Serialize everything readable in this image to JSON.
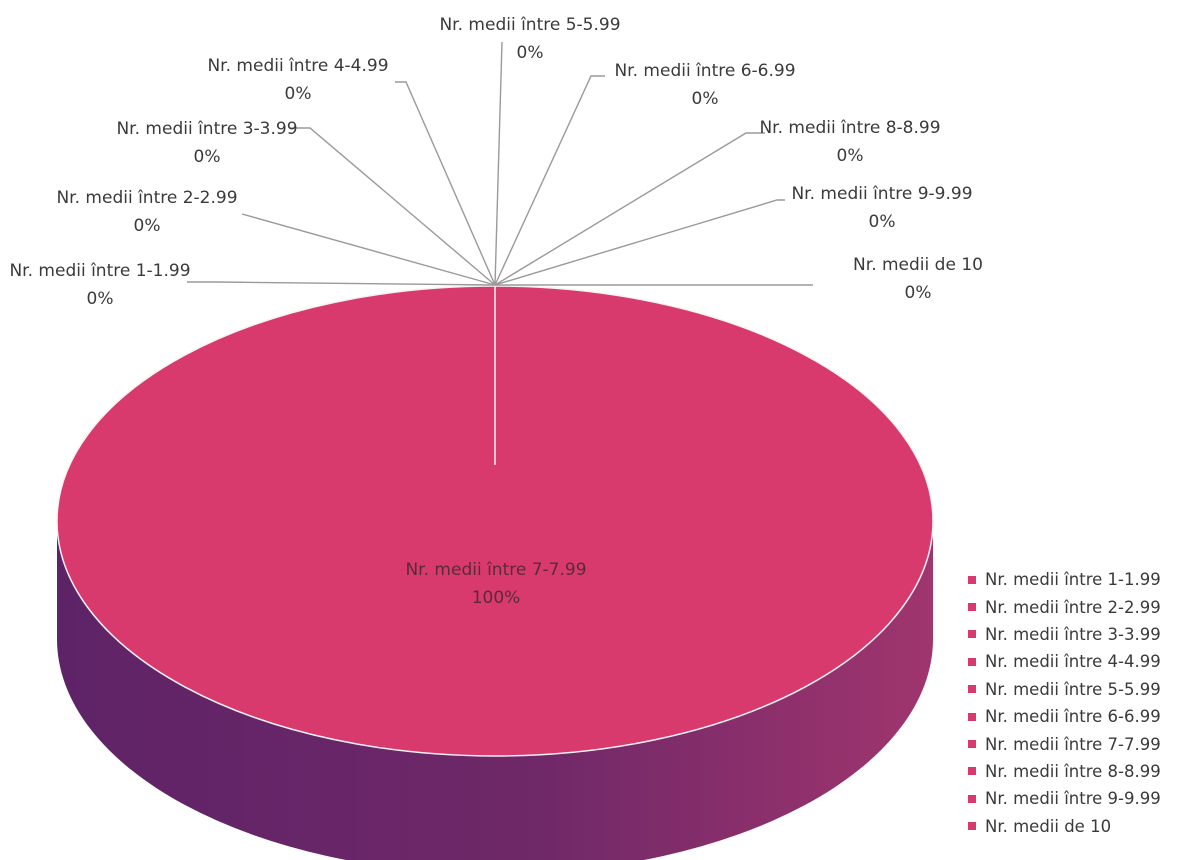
{
  "chart_data": {
    "type": "pie",
    "style": "3d",
    "legend_position": "bottom-right",
    "colors": {
      "top": "#d83a6e",
      "side_dark": "#5e2367",
      "side_light": "#a0356e",
      "leader": "#9a9a9a",
      "legend_swatch": "#d83a6e"
    },
    "slices": [
      {
        "name": "Nr. medii între 1-1.99",
        "value": 0,
        "label": "0%"
      },
      {
        "name": "Nr. medii între 2-2.99",
        "value": 0,
        "label": "0%"
      },
      {
        "name": "Nr. medii între 3-3.99",
        "value": 0,
        "label": "0%"
      },
      {
        "name": "Nr. medii între 4-4.99",
        "value": 0,
        "label": "0%"
      },
      {
        "name": "Nr. medii între 5-5.99",
        "value": 0,
        "label": "0%"
      },
      {
        "name": "Nr. medii între 6-6.99",
        "value": 0,
        "label": "0%"
      },
      {
        "name": "Nr. medii între 7-7.99",
        "value": 100,
        "label": "100%"
      },
      {
        "name": "Nr. medii între 8-8.99",
        "value": 0,
        "label": "0%"
      },
      {
        "name": "Nr. medii între 9-9.99",
        "value": 0,
        "label": "0%"
      },
      {
        "name": "Nr. medii de 10",
        "value": 0,
        "label": "0%"
      }
    ]
  }
}
